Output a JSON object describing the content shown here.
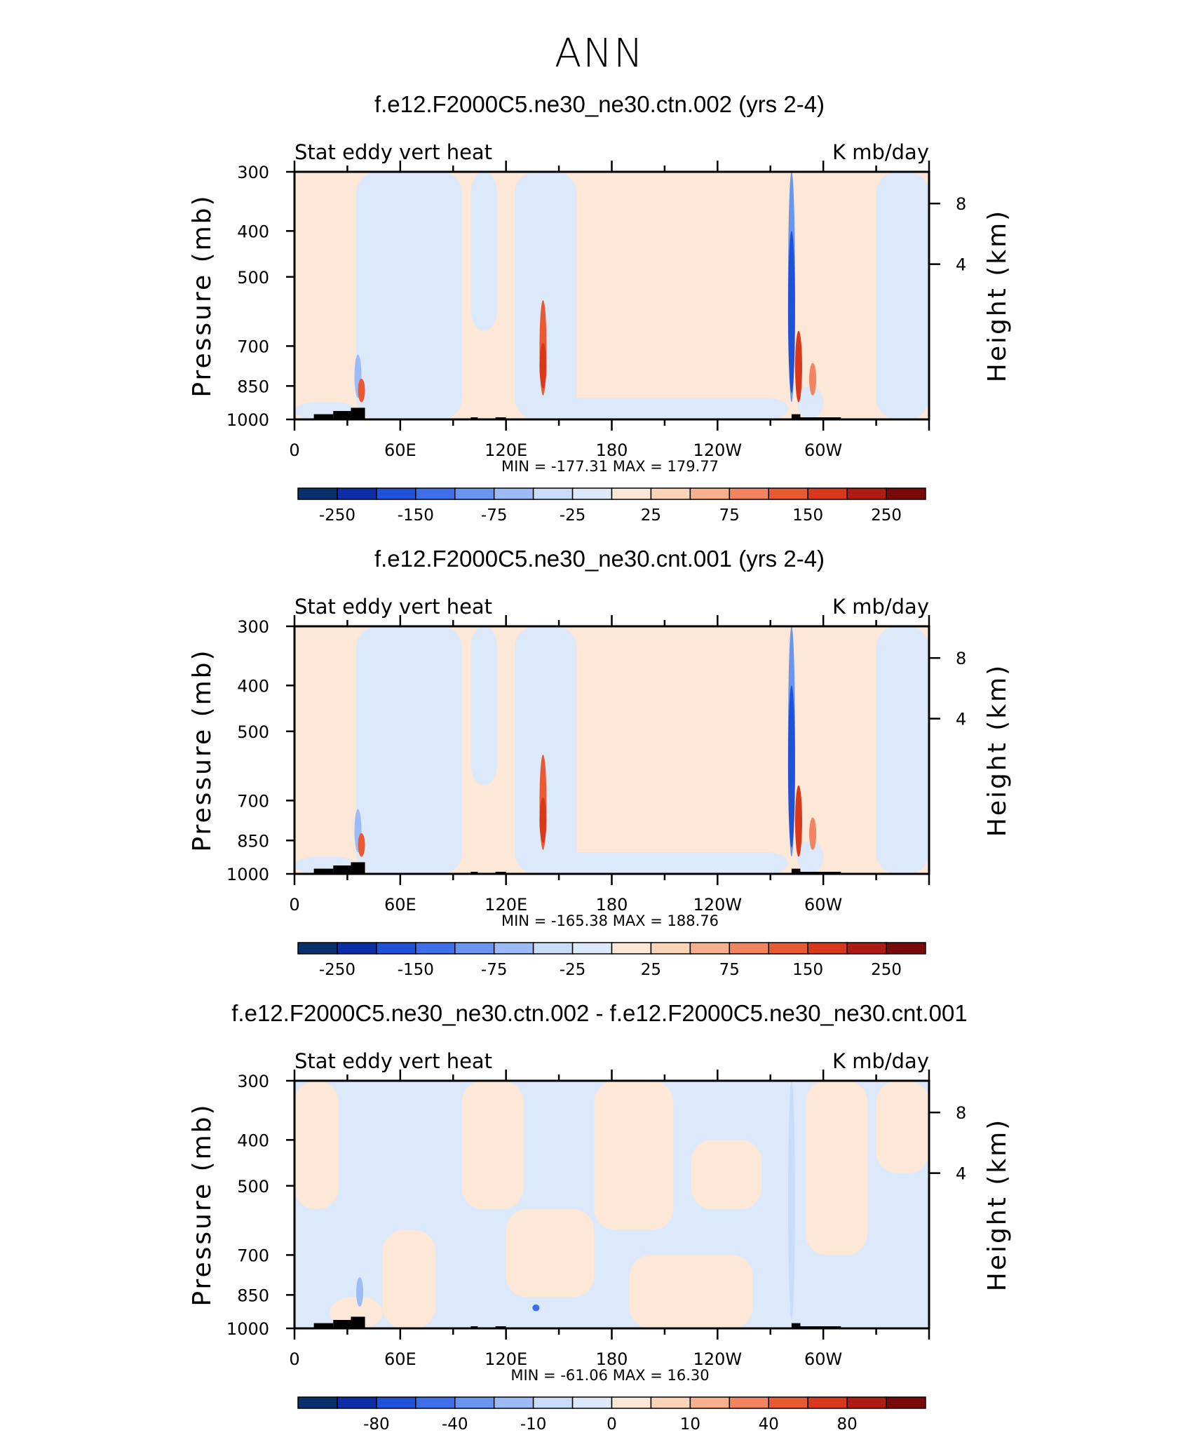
{
  "page": {
    "title": "ANN"
  },
  "shared": {
    "left_label": "Stat eddy vert heat",
    "right_label": "K mb/day",
    "y_label": "Pressure (mb)",
    "y2_label": "Height (km)",
    "x_ticks": [
      {
        "lon": 0,
        "label": "0"
      },
      {
        "lon": 60,
        "label": "60E"
      },
      {
        "lon": 120,
        "label": "120E"
      },
      {
        "lon": 180,
        "label": "180"
      },
      {
        "lon": 240,
        "label": "120W"
      },
      {
        "lon": 300,
        "label": "60W"
      }
    ],
    "y_ticks": [
      {
        "p": 300,
        "label": "300"
      },
      {
        "p": 400,
        "label": "400"
      },
      {
        "p": 500,
        "label": "500"
      },
      {
        "p": 700,
        "label": "700"
      },
      {
        "p": 850,
        "label": "850"
      },
      {
        "p": 1000,
        "label": "1000"
      }
    ],
    "y2_ticks": [
      {
        "p": 470,
        "label": "4"
      },
      {
        "p": 350,
        "label": "8"
      }
    ]
  },
  "colors": {
    "scale": [
      "#08306b",
      "#0b2fa8",
      "#1f51d9",
      "#3d6fe8",
      "#6a95f0",
      "#9dbcf7",
      "#c9ddfa",
      "#dbe9fb",
      "#fde7d6",
      "#fcd4b8",
      "#f8b08c",
      "#f28560",
      "#ea5a32",
      "#d9391a",
      "#b11c12",
      "#7a0a0a"
    ],
    "land": "#000000"
  },
  "chart_data": [
    {
      "type": "heatmap",
      "title": "f.e12.F2000C5.ne30_ne30.ctn.002 (yrs 2-4)",
      "xlabel": "",
      "ylabel": "Pressure (mb)",
      "xlim": [
        0,
        360
      ],
      "ylim": [
        1000,
        300
      ],
      "min_max_label": "MIN = -177.31   MAX = 179.77",
      "min": -177.31,
      "max": 179.77,
      "colorbar_labels": [
        "-250",
        "-150",
        "-75",
        "-25",
        "25",
        "75",
        "150",
        "250"
      ],
      "colorbar_label_bins": [
        1,
        3,
        5,
        7,
        9,
        11,
        13,
        15
      ],
      "base_bin": 8,
      "regions": [
        {
          "lon": [
            35,
            95
          ],
          "p": [
            300,
            1000
          ],
          "bin": 7
        },
        {
          "lon": [
            125,
            160
          ],
          "p": [
            300,
            1000
          ],
          "bin": 7
        },
        {
          "lon": [
            330,
            360
          ],
          "p": [
            300,
            1000
          ],
          "bin": 7
        },
        {
          "lon": [
            0,
            35
          ],
          "p": [
            920,
            1000
          ],
          "bin": 7
        },
        {
          "lon": [
            140,
            280
          ],
          "p": [
            900,
            1000
          ],
          "bin": 7
        },
        {
          "lon": [
            285,
            300
          ],
          "p": [
            850,
            1000
          ],
          "bin": 7
        },
        {
          "lon": [
            100,
            115
          ],
          "p": [
            300,
            650
          ],
          "bin": 7
        }
      ],
      "features": [
        {
          "lon": 141,
          "p": [
            560,
            890
          ],
          "bin": 12
        },
        {
          "lon": 141,
          "p": [
            690,
            860
          ],
          "bin": 13
        },
        {
          "lon": 282,
          "p": [
            300,
            920
          ],
          "bin": 4
        },
        {
          "lon": 282,
          "p": [
            400,
            880
          ],
          "bin": 2
        },
        {
          "lon": 286,
          "p": [
            650,
            920
          ],
          "bin": 13
        },
        {
          "lon": 294,
          "p": [
            760,
            890
          ],
          "bin": 11
        },
        {
          "lon": 36,
          "p": [
            730,
            900
          ],
          "bin": 5
        },
        {
          "lon": 38,
          "p": [
            820,
            920
          ],
          "bin": 12
        }
      ],
      "land": [
        {
          "lon": [
            11,
            22
          ],
          "p": [
            975,
            1000
          ]
        },
        {
          "lon": [
            22,
            32
          ],
          "p": [
            960,
            1000
          ]
        },
        {
          "lon": [
            32,
            40
          ],
          "p": [
            945,
            1000
          ]
        },
        {
          "lon": [
            100,
            104
          ],
          "p": [
            990,
            1000
          ]
        },
        {
          "lon": [
            114,
            120
          ],
          "p": [
            990,
            1000
          ]
        },
        {
          "lon": [
            282,
            287
          ],
          "p": [
            975,
            1000
          ]
        },
        {
          "lon": [
            287,
            310
          ],
          "p": [
            990,
            1000
          ]
        }
      ]
    },
    {
      "type": "heatmap",
      "title": "f.e12.F2000C5.ne30_ne30.cnt.001 (yrs 2-4)",
      "xlabel": "",
      "ylabel": "Pressure (mb)",
      "xlim": [
        0,
        360
      ],
      "ylim": [
        1000,
        300
      ],
      "min_max_label": "MIN = -165.38   MAX = 188.76",
      "min": -165.38,
      "max": 188.76,
      "colorbar_labels": [
        "-250",
        "-150",
        "-75",
        "-25",
        "25",
        "75",
        "150",
        "250"
      ],
      "colorbar_label_bins": [
        1,
        3,
        5,
        7,
        9,
        11,
        13,
        15
      ],
      "base_bin": 8,
      "regions": [
        {
          "lon": [
            35,
            95
          ],
          "p": [
            300,
            1000
          ],
          "bin": 7
        },
        {
          "lon": [
            125,
            160
          ],
          "p": [
            300,
            1000
          ],
          "bin": 7
        },
        {
          "lon": [
            330,
            360
          ],
          "p": [
            300,
            1000
          ],
          "bin": 7
        },
        {
          "lon": [
            0,
            35
          ],
          "p": [
            920,
            1000
          ],
          "bin": 7
        },
        {
          "lon": [
            140,
            280
          ],
          "p": [
            900,
            1000
          ],
          "bin": 7
        },
        {
          "lon": [
            285,
            300
          ],
          "p": [
            850,
            1000
          ],
          "bin": 7
        },
        {
          "lon": [
            100,
            115
          ],
          "p": [
            300,
            650
          ],
          "bin": 7
        }
      ],
      "features": [
        {
          "lon": 141,
          "p": [
            560,
            890
          ],
          "bin": 12
        },
        {
          "lon": 141,
          "p": [
            690,
            860
          ],
          "bin": 13
        },
        {
          "lon": 282,
          "p": [
            300,
            920
          ],
          "bin": 4
        },
        {
          "lon": 282,
          "p": [
            400,
            880
          ],
          "bin": 2
        },
        {
          "lon": 286,
          "p": [
            650,
            920
          ],
          "bin": 13
        },
        {
          "lon": 294,
          "p": [
            760,
            890
          ],
          "bin": 11
        },
        {
          "lon": 36,
          "p": [
            730,
            900
          ],
          "bin": 5
        },
        {
          "lon": 38,
          "p": [
            820,
            920
          ],
          "bin": 12
        }
      ],
      "land": [
        {
          "lon": [
            11,
            22
          ],
          "p": [
            975,
            1000
          ]
        },
        {
          "lon": [
            22,
            32
          ],
          "p": [
            960,
            1000
          ]
        },
        {
          "lon": [
            32,
            40
          ],
          "p": [
            945,
            1000
          ]
        },
        {
          "lon": [
            100,
            104
          ],
          "p": [
            990,
            1000
          ]
        },
        {
          "lon": [
            114,
            120
          ],
          "p": [
            990,
            1000
          ]
        },
        {
          "lon": [
            282,
            287
          ],
          "p": [
            975,
            1000
          ]
        },
        {
          "lon": [
            287,
            310
          ],
          "p": [
            990,
            1000
          ]
        }
      ]
    },
    {
      "type": "heatmap",
      "title": "f.e12.F2000C5.ne30_ne30.ctn.002 - f.e12.F2000C5.ne30_ne30.cnt.001",
      "xlabel": "",
      "ylabel": "Pressure (mb)",
      "xlim": [
        0,
        360
      ],
      "ylim": [
        1000,
        300
      ],
      "min_max_label": "MIN = -61.06   MAX =  16.30",
      "min": -61.06,
      "max": 16.3,
      "colorbar_labels": [
        "-80",
        "-40",
        "-10",
        "0",
        "10",
        "40",
        "80"
      ],
      "colorbar_label_bins": [
        2,
        4,
        6,
        8,
        10,
        12,
        14
      ],
      "base_bin": 7,
      "regions": [
        {
          "lon": [
            0,
            25
          ],
          "p": [
            300,
            560
          ],
          "bin": 8
        },
        {
          "lon": [
            50,
            80
          ],
          "p": [
            620,
            1000
          ],
          "bin": 8
        },
        {
          "lon": [
            95,
            130
          ],
          "p": [
            300,
            560
          ],
          "bin": 8
        },
        {
          "lon": [
            120,
            170
          ],
          "p": [
            560,
            860
          ],
          "bin": 8
        },
        {
          "lon": [
            170,
            215
          ],
          "p": [
            300,
            620
          ],
          "bin": 8
        },
        {
          "lon": [
            190,
            260
          ],
          "p": [
            700,
            1000
          ],
          "bin": 8
        },
        {
          "lon": [
            290,
            325
          ],
          "p": [
            300,
            700
          ],
          "bin": 8
        },
        {
          "lon": [
            330,
            360
          ],
          "p": [
            300,
            470
          ],
          "bin": 8
        },
        {
          "lon": [
            20,
            50
          ],
          "p": [
            860,
            1000
          ],
          "bin": 8
        },
        {
          "lon": [
            225,
            265
          ],
          "p": [
            400,
            560
          ],
          "bin": 8
        }
      ],
      "features": [
        {
          "lon": 282,
          "p": [
            300,
            960
          ],
          "bin": 6
        },
        {
          "lon": 37,
          "p": [
            780,
            900
          ],
          "bin": 5
        },
        {
          "lon": 137,
          "p": [
            890,
            920
          ],
          "bin": 3
        }
      ],
      "land": [
        {
          "lon": [
            11,
            22
          ],
          "p": [
            975,
            1000
          ]
        },
        {
          "lon": [
            22,
            32
          ],
          "p": [
            960,
            1000
          ]
        },
        {
          "lon": [
            32,
            40
          ],
          "p": [
            945,
            1000
          ]
        },
        {
          "lon": [
            100,
            104
          ],
          "p": [
            990,
            1000
          ]
        },
        {
          "lon": [
            114,
            120
          ],
          "p": [
            990,
            1000
          ]
        },
        {
          "lon": [
            282,
            287
          ],
          "p": [
            975,
            1000
          ]
        },
        {
          "lon": [
            287,
            310
          ],
          "p": [
            990,
            1000
          ]
        }
      ]
    }
  ]
}
